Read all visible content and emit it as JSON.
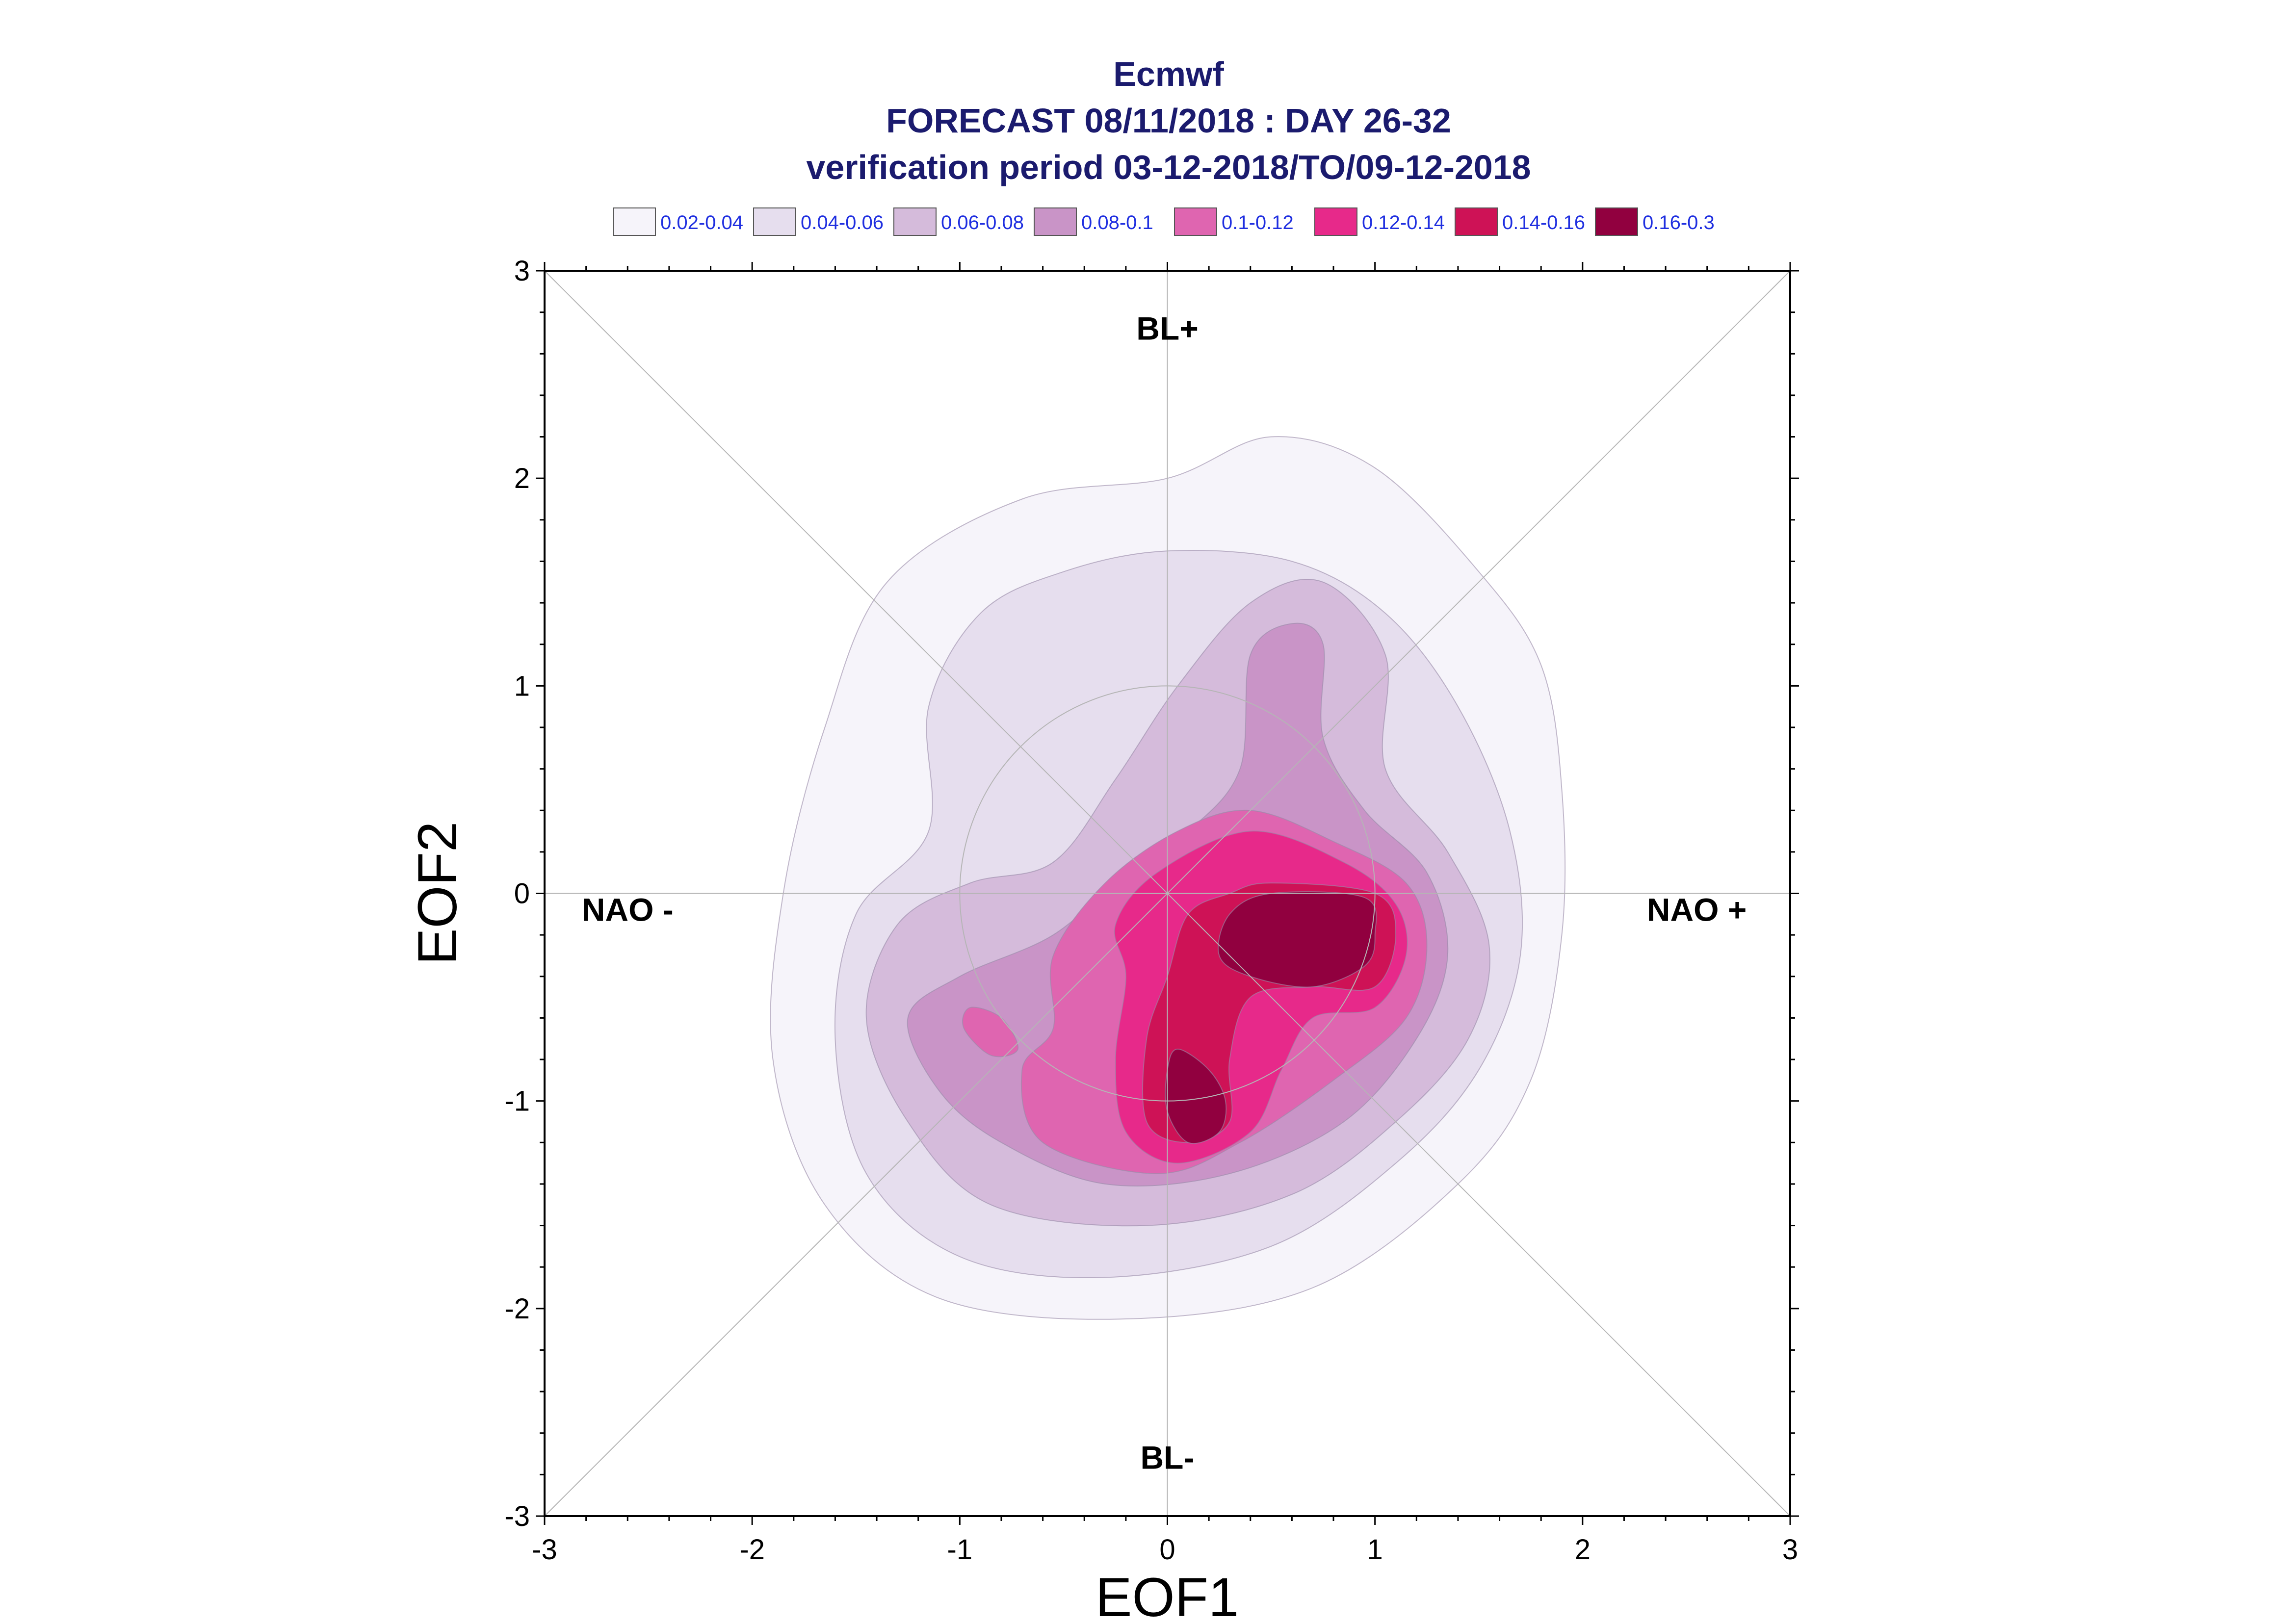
{
  "chart_data": {
    "type": "contour",
    "title": [
      "Ecmwf",
      "FORECAST 08/11/2018 : DAY 26-32",
      "verification period 03-12-2018/TO/09-12-2018"
    ],
    "xlabel": "EOF1",
    "ylabel": "EOF2",
    "xlim": [
      -3,
      3
    ],
    "ylim": [
      -3,
      3
    ],
    "xticks": [
      "-3",
      "-2",
      "-1",
      "0",
      "1",
      "2",
      "3"
    ],
    "yticks": [
      "-3",
      "-2",
      "-1",
      "0",
      "1",
      "2",
      "3"
    ],
    "grid": false,
    "legend_position": "top",
    "legend": [
      {
        "label": "0.02-0.04",
        "color": "#f6f4fa"
      },
      {
        "label": "0.04-0.06",
        "color": "#e6deee"
      },
      {
        "label": "0.06-0.08",
        "color": "#d5bbdb"
      },
      {
        "label": "0.08-0.1",
        "color": "#c994c7"
      },
      {
        "label": "0.1-0.12",
        "color": "#df65b0"
      },
      {
        "label": "0.12-0.14",
        "color": "#e7298a"
      },
      {
        "label": "0.14-0.16",
        "color": "#ce1256"
      },
      {
        "label": "0.16-0.3",
        "color": "#91003f"
      }
    ],
    "regime_labels": [
      {
        "text": "BL+",
        "x": 0,
        "y": 2.72
      },
      {
        "text": "BL-",
        "x": 0,
        "y": -2.72
      },
      {
        "text": "NAO -",
        "x": -2.6,
        "y": -0.08
      },
      {
        "text": "NAO +",
        "x": 2.55,
        "y": -0.08
      }
    ],
    "reference_circle_radius": 1,
    "contour_levels": [
      {
        "range": "0.02-0.04",
        "color": "#f6f4fa",
        "polygons": [
          [
            [
              0.0,
              2.0
            ],
            [
              0.5,
              2.2
            ],
            [
              1.0,
              2.05
            ],
            [
              1.5,
              1.55
            ],
            [
              1.8,
              1.1
            ],
            [
              1.9,
              0.5
            ],
            [
              1.9,
              -0.2
            ],
            [
              1.75,
              -0.9
            ],
            [
              1.4,
              -1.4
            ],
            [
              0.7,
              -1.9
            ],
            [
              -0.2,
              -2.05
            ],
            [
              -1.1,
              -1.95
            ],
            [
              -1.65,
              -1.5
            ],
            [
              -1.9,
              -0.8
            ],
            [
              -1.85,
              0.0
            ],
            [
              -1.65,
              0.8
            ],
            [
              -1.35,
              1.5
            ],
            [
              -0.7,
              1.9
            ]
          ]
        ]
      },
      {
        "range": "0.04-0.06",
        "color": "#e6deee",
        "polygons": [
          [
            [
              -0.5,
              1.55
            ],
            [
              0.0,
              1.65
            ],
            [
              0.6,
              1.6
            ],
            [
              1.05,
              1.35
            ],
            [
              1.4,
              0.9
            ],
            [
              1.65,
              0.3
            ],
            [
              1.7,
              -0.3
            ],
            [
              1.5,
              -0.85
            ],
            [
              1.1,
              -1.3
            ],
            [
              0.5,
              -1.7
            ],
            [
              -0.3,
              -1.85
            ],
            [
              -1.0,
              -1.75
            ],
            [
              -1.45,
              -1.35
            ],
            [
              -1.6,
              -0.7
            ],
            [
              -1.5,
              -0.1
            ],
            [
              -1.15,
              0.3
            ],
            [
              -1.15,
              0.9
            ],
            [
              -0.9,
              1.35
            ]
          ]
        ]
      },
      {
        "range": "0.06-0.08",
        "color": "#d5bbdb",
        "polygons": [
          [
            [
              0.4,
              1.4
            ],
            [
              0.75,
              1.5
            ],
            [
              1.05,
              1.15
            ],
            [
              1.05,
              0.6
            ],
            [
              1.35,
              0.2
            ],
            [
              1.55,
              -0.25
            ],
            [
              1.45,
              -0.7
            ],
            [
              1.1,
              -1.1
            ],
            [
              0.6,
              -1.45
            ],
            [
              -0.1,
              -1.6
            ],
            [
              -0.85,
              -1.5
            ],
            [
              -1.25,
              -1.1
            ],
            [
              -1.45,
              -0.6
            ],
            [
              -1.3,
              -0.15
            ],
            [
              -0.95,
              0.05
            ],
            [
              -0.55,
              0.15
            ],
            [
              -0.25,
              0.55
            ],
            [
              0.05,
              1.0
            ]
          ]
        ]
      },
      {
        "range": "0.08-0.1",
        "color": "#c994c7",
        "polygons": [
          [
            [
              0.4,
              1.15
            ],
            [
              0.6,
              1.3
            ],
            [
              0.75,
              1.2
            ],
            [
              0.75,
              0.75
            ],
            [
              0.95,
              0.4
            ],
            [
              1.25,
              0.1
            ],
            [
              1.35,
              -0.3
            ],
            [
              1.2,
              -0.7
            ],
            [
              0.85,
              -1.1
            ],
            [
              0.3,
              -1.35
            ],
            [
              -0.3,
              -1.4
            ],
            [
              -0.8,
              -1.2
            ],
            [
              -1.1,
              -0.95
            ],
            [
              -1.25,
              -0.6
            ],
            [
              -1.0,
              -0.4
            ],
            [
              -0.55,
              -0.2
            ],
            [
              -0.2,
              0.1
            ],
            [
              0.1,
              0.3
            ],
            [
              0.35,
              0.6
            ]
          ]
        ]
      },
      {
        "range": "0.1-0.12",
        "color": "#df65b0",
        "polygons": [
          [
            [
              0.4,
              0.4
            ],
            [
              0.8,
              0.25
            ],
            [
              1.15,
              0.05
            ],
            [
              1.25,
              -0.25
            ],
            [
              1.15,
              -0.6
            ],
            [
              0.8,
              -0.9
            ],
            [
              0.35,
              -1.2
            ],
            [
              -0.05,
              -1.35
            ],
            [
              -0.6,
              -1.2
            ],
            [
              -0.7,
              -0.85
            ],
            [
              -0.55,
              -0.65
            ],
            [
              -0.55,
              -0.3
            ],
            [
              -0.3,
              0.05
            ],
            [
              0.05,
              0.3
            ]
          ],
          [
            [
              -0.95,
              -0.55
            ],
            [
              -0.8,
              -0.6
            ],
            [
              -0.72,
              -0.75
            ],
            [
              -0.85,
              -0.78
            ],
            [
              -0.98,
              -0.65
            ]
          ]
        ]
      },
      {
        "range": "0.12-0.14",
        "color": "#e7298a",
        "polygons": [
          [
            [
              0.4,
              0.3
            ],
            [
              0.85,
              0.15
            ],
            [
              1.1,
              -0.05
            ],
            [
              1.15,
              -0.3
            ],
            [
              1.0,
              -0.55
            ],
            [
              0.7,
              -0.6
            ],
            [
              0.55,
              -0.85
            ],
            [
              0.4,
              -1.15
            ],
            [
              0.05,
              -1.3
            ],
            [
              -0.2,
              -1.15
            ],
            [
              -0.25,
              -0.8
            ],
            [
              -0.2,
              -0.4
            ],
            [
              -0.25,
              -0.15
            ],
            [
              -0.05,
              0.1
            ]
          ]
        ]
      },
      {
        "range": "0.14-0.16",
        "color": "#ce1256",
        "polygons": [
          [
            [
              0.5,
              0.05
            ],
            [
              1.0,
              0.0
            ],
            [
              1.1,
              -0.2
            ],
            [
              1.0,
              -0.45
            ],
            [
              0.7,
              -0.45
            ],
            [
              0.4,
              -0.5
            ],
            [
              0.3,
              -0.8
            ],
            [
              0.3,
              -1.1
            ],
            [
              0.1,
              -1.2
            ],
            [
              -0.1,
              -1.1
            ],
            [
              -0.1,
              -0.7
            ],
            [
              0.0,
              -0.4
            ],
            [
              0.1,
              -0.1
            ],
            [
              0.3,
              0.0
            ]
          ]
        ]
      },
      {
        "range": "0.16-0.3",
        "color": "#91003f",
        "polygons": [
          [
            [
              0.3,
              -0.1
            ],
            [
              0.5,
              0.0
            ],
            [
              0.95,
              -0.02
            ],
            [
              1.0,
              -0.2
            ],
            [
              0.95,
              -0.35
            ],
            [
              0.7,
              -0.45
            ],
            [
              0.4,
              -0.4
            ],
            [
              0.25,
              -0.3
            ]
          ],
          [
            [
              0.05,
              -0.75
            ],
            [
              0.2,
              -0.85
            ],
            [
              0.28,
              -1.0
            ],
            [
              0.25,
              -1.15
            ],
            [
              0.1,
              -1.2
            ],
            [
              0.0,
              -1.05
            ],
            [
              0.0,
              -0.85
            ]
          ]
        ]
      }
    ]
  }
}
